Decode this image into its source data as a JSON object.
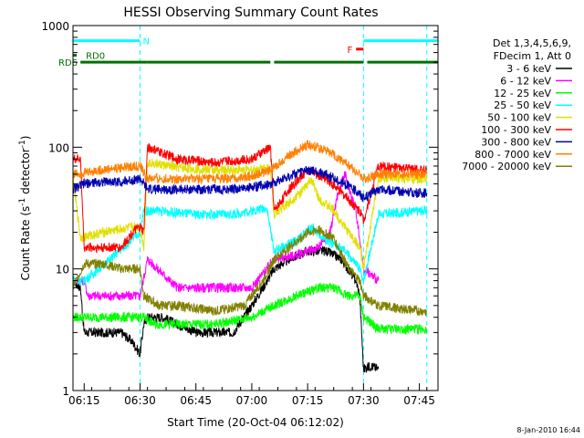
{
  "chart_data": {
    "type": "line",
    "title": "HESSI Observing Summary Count Rates",
    "xlabel": "Start Time (20-Oct-04 06:12:02)",
    "ylabel_main": "Count Rate (s",
    "ylabel_sup1": "-1",
    "ylabel_mid": " detector",
    "ylabel_sup2": "-1",
    "ylabel_end": ")",
    "yscale": "log",
    "xlim": [
      "06:12",
      "07:50"
    ],
    "ylim": [
      1,
      1000
    ],
    "x_ticks": [
      "06:15",
      "06:30",
      "06:45",
      "07:00",
      "07:15",
      "07:30",
      "07:45"
    ],
    "y_ticks": [
      "1",
      "10",
      "100",
      "1000"
    ],
    "footer_date": "8-Jan-2010 16:44",
    "legend_header": [
      "Det 1,3,4,5,6,9,",
      "FDecim 1, Att 0"
    ],
    "series": [
      {
        "name": "3 - 6 keV",
        "color": "#000000",
        "x": [
          "06:12",
          "06:14",
          "06:15",
          "06:22",
          "06:25",
          "06:28",
          "06:30",
          "06:31",
          "06:32",
          "06:36",
          "06:45",
          "06:55",
          "07:00",
          "07:03",
          "07:06",
          "07:10",
          "07:15",
          "07:20",
          "07:24",
          "07:28",
          "07:29",
          "07:30",
          "07:32",
          "07:34"
        ],
        "y": [
          8,
          7,
          3,
          3,
          3,
          2.5,
          2,
          3.5,
          4,
          4,
          3,
          3,
          5,
          7,
          10,
          12,
          14,
          14,
          12,
          8,
          6,
          1.5,
          1.6,
          1.5
        ]
      },
      {
        "name": "6 - 12 keV",
        "color": "#ff00ff",
        "x": [
          "06:12",
          "06:15",
          "06:16",
          "06:25",
          "06:28",
          "06:30",
          "06:32",
          "06:40",
          "06:50",
          "07:00",
          "07:06",
          "07:12",
          "07:18",
          "07:21",
          "07:23",
          "07:25",
          "07:28",
          "07:30",
          "07:34"
        ],
        "y": [
          8,
          8,
          6,
          6,
          6,
          6,
          12,
          7,
          7,
          7,
          12,
          13,
          15,
          20,
          40,
          60,
          30,
          10,
          8
        ]
      },
      {
        "name": "12 - 25 keV",
        "color": "#00ff00",
        "x": [
          "06:12",
          "06:15",
          "06:20",
          "06:25",
          "06:30",
          "06:31",
          "06:34",
          "06:40",
          "06:50",
          "07:00",
          "07:06",
          "07:12",
          "07:18",
          "07:22",
          "07:26",
          "07:29",
          "07:30",
          "07:34",
          "07:45",
          "07:47"
        ],
        "y": [
          4,
          4,
          4,
          4,
          4,
          4,
          3.5,
          3.5,
          3.5,
          4,
          5,
          6,
          7,
          7,
          6,
          6,
          4,
          3.2,
          3.2,
          3.2
        ]
      },
      {
        "name": "25 - 50 keV",
        "color": "#00ffff",
        "x": [
          "06:12",
          "06:15",
          "06:22",
          "06:30",
          "06:31",
          "06:35",
          "06:45",
          "06:55",
          "07:00",
          "07:04",
          "07:06",
          "07:12",
          "07:16",
          "07:20",
          "07:25",
          "07:29",
          "07:30",
          "07:34",
          "07:45",
          "07:47"
        ],
        "y": [
          8,
          8,
          12,
          20,
          30,
          30,
          28,
          28,
          30,
          32,
          14,
          17,
          22,
          17,
          14,
          10,
          8,
          28,
          30,
          30
        ]
      },
      {
        "name": "50 - 100 keV",
        "color": "#e0e000",
        "x": [
          "06:12",
          "06:14",
          "06:20",
          "06:28",
          "06:30",
          "06:31",
          "06:32",
          "06:40",
          "06:50",
          "07:00",
          "07:05",
          "07:06",
          "07:10",
          "07:14",
          "07:16",
          "07:18",
          "07:22",
          "07:26",
          "07:29",
          "07:30",
          "07:34",
          "07:45",
          "07:47"
        ],
        "y": [
          55,
          18,
          20,
          22,
          22,
          15,
          75,
          68,
          65,
          65,
          68,
          28,
          35,
          45,
          55,
          38,
          30,
          20,
          15,
          10,
          55,
          55,
          55
        ]
      },
      {
        "name": "100 - 300 keV",
        "color": "#ff0000",
        "x": [
          "06:12",
          "06:14",
          "06:15",
          "06:25",
          "06:28",
          "06:30",
          "06:31",
          "06:32",
          "06:40",
          "06:50",
          "07:00",
          "07:05",
          "07:06",
          "07:10",
          "07:15",
          "07:20",
          "07:25",
          "07:29",
          "07:30",
          "07:34",
          "07:45",
          "07:47"
        ],
        "y": [
          80,
          80,
          15,
          15,
          20,
          22,
          20,
          100,
          80,
          75,
          80,
          100,
          30,
          45,
          65,
          55,
          40,
          30,
          25,
          70,
          65,
          65
        ]
      },
      {
        "name": "300 - 800 keV",
        "color": "#0000b0",
        "x": [
          "06:12",
          "06:15",
          "06:20",
          "06:25",
          "06:30",
          "06:32",
          "06:35",
          "06:45",
          "06:55",
          "07:00",
          "07:05",
          "07:10",
          "07:15",
          "07:20",
          "07:25",
          "07:29",
          "07:30",
          "07:34",
          "07:45",
          "07:47"
        ],
        "y": [
          45,
          50,
          52,
          52,
          55,
          45,
          45,
          45,
          45,
          47,
          50,
          58,
          65,
          60,
          50,
          42,
          38,
          45,
          42,
          42
        ]
      },
      {
        "name": "800 - 7000 keV",
        "color": "#ff8000",
        "x": [
          "06:12",
          "06:15",
          "06:20",
          "06:25",
          "06:30",
          "06:32",
          "06:35",
          "06:45",
          "06:55",
          "07:00",
          "07:05",
          "07:10",
          "07:15",
          "07:20",
          "07:25",
          "07:29",
          "07:30",
          "07:34",
          "07:45",
          "07:47"
        ],
        "y": [
          60,
          62,
          65,
          68,
          70,
          55,
          55,
          55,
          55,
          58,
          65,
          85,
          105,
          95,
          75,
          60,
          55,
          60,
          60,
          60
        ]
      },
      {
        "name": "7000 - 20000 keV",
        "color": "#808000",
        "x": [
          "06:12",
          "06:15",
          "06:20",
          "06:25",
          "06:30",
          "06:31",
          "06:35",
          "06:40",
          "06:50",
          "06:58",
          "07:03",
          "07:06",
          "07:10",
          "07:15",
          "07:18",
          "07:22",
          "07:26",
          "07:29",
          "07:30",
          "07:34",
          "07:45",
          "07:47"
        ],
        "y": [
          7,
          11,
          11,
          10,
          10,
          6,
          5,
          5,
          4.5,
          5,
          8,
          12,
          15,
          20,
          21,
          18,
          10,
          8,
          6,
          5,
          4.5,
          4.5
        ]
      }
    ],
    "annotations": [
      {
        "label": "N",
        "color": "#00ffff",
        "y": 750,
        "segments": [
          [
            "06:12",
            "06:30"
          ],
          [
            "07:30",
            "07:50"
          ]
        ]
      },
      {
        "label": "RD0",
        "color": "#007000",
        "y": 570,
        "segments": [
          [
            "06:12",
            "06:13"
          ]
        ]
      },
      {
        "label": "RD6",
        "color": "#007000",
        "y": 500,
        "segments": [
          [
            "06:14",
            "06:32"
          ],
          [
            "06:32",
            "07:05"
          ],
          [
            "07:06",
            "07:30"
          ],
          [
            "07:31",
            "07:50"
          ]
        ]
      },
      {
        "label": "F",
        "color": "#ff0000",
        "y": 640,
        "segments": [
          [
            "07:28",
            "07:30"
          ]
        ]
      }
    ],
    "vlines": [
      "06:12",
      "06:30",
      "07:30",
      "07:47"
    ]
  }
}
